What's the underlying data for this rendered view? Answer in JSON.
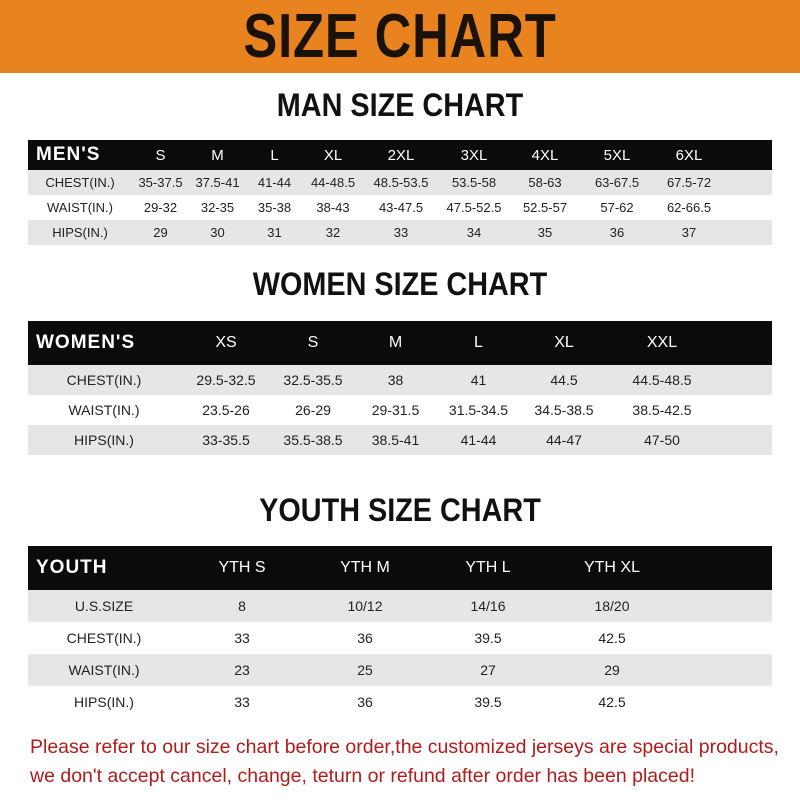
{
  "banner": {
    "title": "SIZE CHART",
    "color": "#e8831f"
  },
  "men": {
    "title": "MAN SIZE CHART",
    "header": [
      "MEN'S",
      "S",
      "M",
      "L",
      "XL",
      "2XL",
      "3XL",
      "4XL",
      "5XL",
      "6XL"
    ],
    "rows": [
      [
        "CHEST(IN.)",
        "35-37.5",
        "37.5-41",
        "41-44",
        "44-48.5",
        "48.5-53.5",
        "53.5-58",
        "58-63",
        "63-67.5",
        "67.5-72"
      ],
      [
        "WAIST(IN.)",
        "29-32",
        "32-35",
        "35-38",
        "38-43",
        "43-47.5",
        "47.5-52.5",
        "52.5-57",
        "57-62",
        "62-66.5"
      ],
      [
        "HIPS(IN.)",
        "29",
        "30",
        "31",
        "32",
        "33",
        "34",
        "35",
        "36",
        "37"
      ]
    ]
  },
  "women": {
    "title": "WOMEN SIZE CHART",
    "header": [
      "WOMEN'S",
      "XS",
      "S",
      "M",
      "L",
      "XL",
      "XXL"
    ],
    "rows": [
      [
        "CHEST(IN.)",
        "29.5-32.5",
        "32.5-35.5",
        "38",
        "41",
        "44.5",
        "44.5-48.5"
      ],
      [
        "WAIST(IN.)",
        "23.5-26",
        "26-29",
        "29-31.5",
        "31.5-34.5",
        "34.5-38.5",
        "38.5-42.5"
      ],
      [
        "HIPS(IN.)",
        "33-35.5",
        "35.5-38.5",
        "38.5-41",
        "41-44",
        "44-47",
        "47-50"
      ]
    ]
  },
  "youth": {
    "title": "YOUTH SIZE CHART",
    "header": [
      "YOUTH",
      "YTH S",
      "YTH M",
      "YTH L",
      "YTH XL"
    ],
    "rows": [
      [
        "U.S.SIZE",
        "8",
        "10/12",
        "14/16",
        "18/20"
      ],
      [
        "CHEST(IN.)",
        "33",
        "36",
        "39.5",
        "42.5"
      ],
      [
        "WAIST(IN.)",
        "23",
        "25",
        "27",
        "29"
      ],
      [
        "HIPS(IN.)",
        "33",
        "36",
        "39.5",
        "42.5"
      ]
    ]
  },
  "note": {
    "line1": "Please refer to our size chart before order,the customized jerseys are special products,",
    "line2": "we don't accept cancel, change, teturn or refund after order has been placed!",
    "color": "#b01c1c"
  }
}
